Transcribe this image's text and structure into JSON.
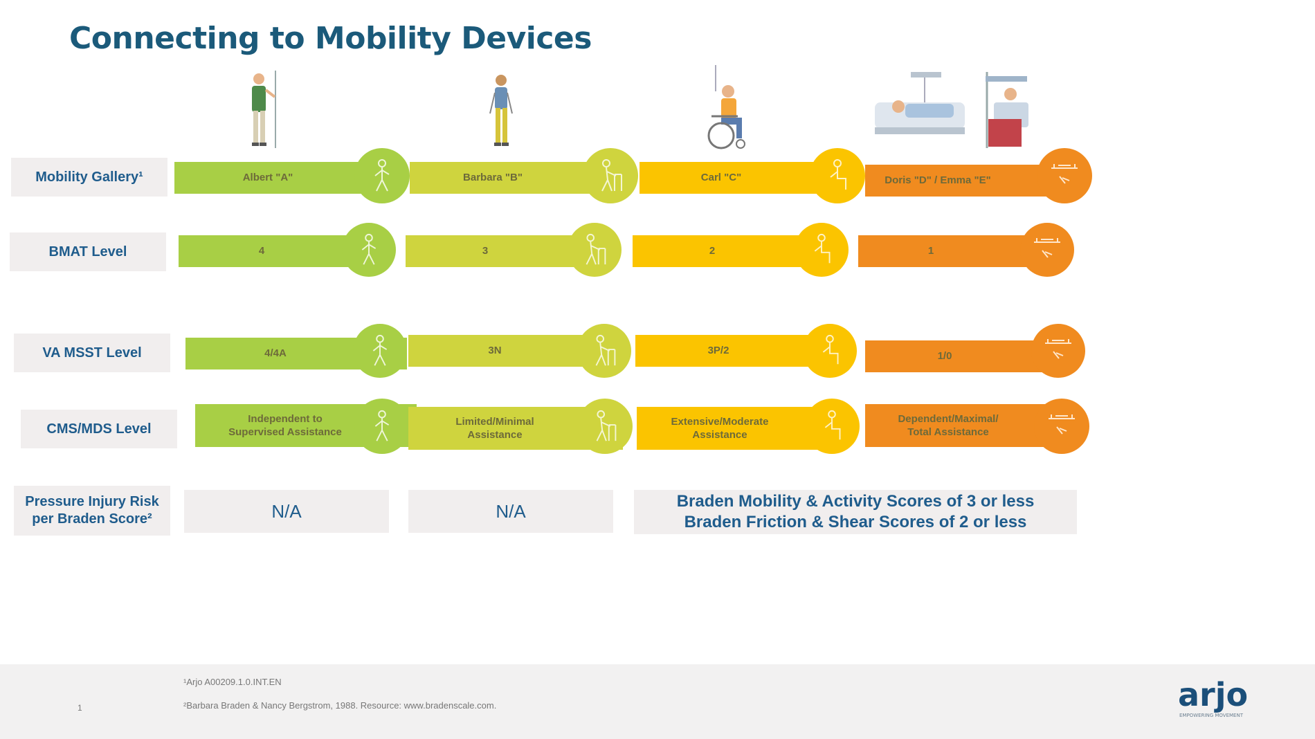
{
  "title": "Connecting to Mobility Devices",
  "colors": {
    "title": "#1b5a7a",
    "label_text": "#1f5c8c",
    "label_bg": "#f1eeee",
    "col_a": "#a8cf45",
    "col_b": "#cfd43e",
    "col_c": "#fbc400",
    "col_d": "#f08b1f"
  },
  "rows": [
    {
      "label": "Mobility Gallery¹",
      "values": [
        "Albert \"A\"",
        "Barbara \"B\"",
        "Carl \"C\"",
        "Doris \"D\" / Emma \"E\""
      ]
    },
    {
      "label": "BMAT Level",
      "values": [
        "4",
        "3",
        "2",
        "1"
      ]
    },
    {
      "label": "VA MSST Level",
      "values": [
        "4/4A",
        "3N",
        "3P/2",
        "1/0"
      ]
    },
    {
      "label": "CMS/MDS Level",
      "values": [
        [
          "Independent to",
          "Supervised Assistance"
        ],
        [
          "Limited/Minimal",
          "Assistance"
        ],
        [
          "Extensive/Moderate",
          "Assistance"
        ],
        [
          "Dependent/Maximal/",
          "Total Assistance"
        ]
      ]
    }
  ],
  "pressure": {
    "label": [
      "Pressure Injury Risk",
      "per Braden Score²"
    ],
    "na_a": "N/A",
    "na_b": "N/A",
    "braden": [
      "Braden Mobility & Activity Scores of 3 or less",
      "Braden Friction & Shear Scores of 2 or less"
    ]
  },
  "icons": [
    "walking-person-icon",
    "walker-person-icon",
    "sitting-person-icon",
    "bed-lift-icon"
  ],
  "footer": {
    "page_number": "1",
    "footnote_1": "¹Arjo A00209.1.0.INT.EN",
    "footnote_2": "²Barbara Braden & Nancy Bergstrom, 1988. Resource: www.bradenscale.com."
  },
  "logo": {
    "text": "arjo",
    "tagline": "EMPOWERING MOVEMENT"
  }
}
